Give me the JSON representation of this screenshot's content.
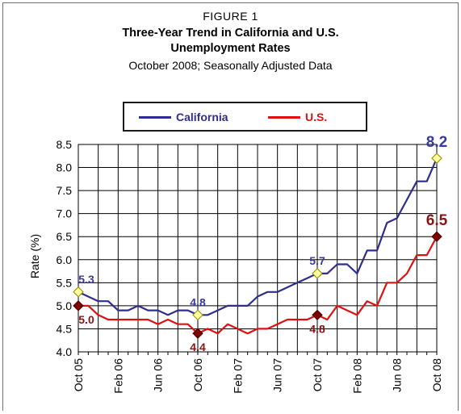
{
  "figure_label": "FIGURE 1",
  "title_line1": "Three-Year Trend in California and U.S.",
  "title_line2": "Unemployment Rates",
  "subtitle": "October 2008; Seasonally Adjusted Data",
  "colors": {
    "california": "#2e2e8c",
    "us": "#e01010",
    "ca_marker": "#ffff99",
    "us_marker": "#800000",
    "ca_label": "#3a3a9a",
    "us_label": "#8a1414"
  },
  "chart_data": {
    "type": "line",
    "title": "Three-Year Trend in California and U.S. Unemployment Rates",
    "subtitle": "October 2008; Seasonally Adjusted Data",
    "ylabel": "Rate (%)",
    "xlabel": "",
    "ylim": [
      4.0,
      8.5
    ],
    "yticks": [
      "4.0",
      "4.5",
      "5.0",
      "5.5",
      "6.0",
      "6.5",
      "7.0",
      "7.5",
      "8.0",
      "8.5"
    ],
    "xticks": [
      "Oct 05",
      "Feb 06",
      "Jun 06",
      "Oct 06",
      "Feb 07",
      "Jun 07",
      "Oct 07",
      "Feb 08",
      "Jun 08",
      "Oct 08"
    ],
    "grid": true,
    "legend_position": "top",
    "series": [
      {
        "name": "California",
        "values": [
          5.3,
          5.2,
          5.1,
          5.1,
          4.9,
          4.9,
          5.0,
          4.9,
          4.9,
          4.8,
          4.9,
          4.9,
          4.8,
          4.8,
          4.9,
          5.0,
          5.0,
          5.0,
          5.2,
          5.3,
          5.3,
          5.4,
          5.5,
          5.6,
          5.7,
          5.7,
          5.9,
          5.9,
          5.7,
          6.2,
          6.2,
          6.8,
          6.9,
          7.3,
          7.7,
          7.7,
          8.2
        ]
      },
      {
        "name": "U.S.",
        "values": [
          5.0,
          5.0,
          4.8,
          4.7,
          4.7,
          4.7,
          4.7,
          4.7,
          4.6,
          4.7,
          4.6,
          4.6,
          4.4,
          4.5,
          4.4,
          4.6,
          4.5,
          4.4,
          4.5,
          4.5,
          4.6,
          4.7,
          4.7,
          4.7,
          4.8,
          4.7,
          5.0,
          4.9,
          4.8,
          5.1,
          5.0,
          5.5,
          5.5,
          5.7,
          6.1,
          6.1,
          6.5
        ]
      }
    ],
    "annotations": [
      {
        "series": "California",
        "label": "5.3",
        "index": 0
      },
      {
        "series": "California",
        "label": "4.8",
        "index": 12
      },
      {
        "series": "California",
        "label": "5.7",
        "index": 24
      },
      {
        "series": "California",
        "label": "8.2",
        "index": 36
      },
      {
        "series": "U.S.",
        "label": "5.0",
        "index": 0
      },
      {
        "series": "U.S.",
        "label": "4.4",
        "index": 12
      },
      {
        "series": "U.S.",
        "label": "4.8",
        "index": 24
      },
      {
        "series": "U.S.",
        "label": "6.5",
        "index": 36
      }
    ]
  }
}
